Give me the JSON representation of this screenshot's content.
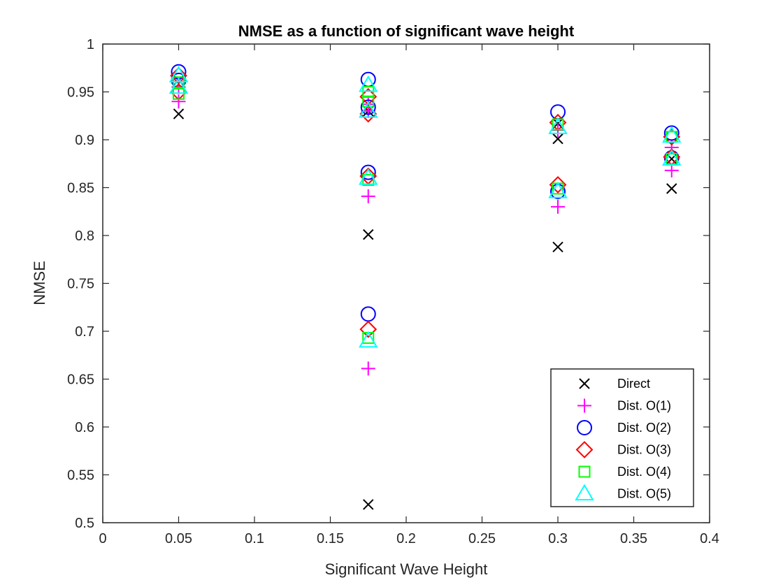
{
  "chart_data": {
    "type": "scatter",
    "title": "NMSE as a function of significant wave height",
    "xlabel": "Significant Wave Height",
    "ylabel": "NMSE",
    "xlim": [
      0,
      0.4
    ],
    "ylim": [
      0.5,
      1
    ],
    "xticks": [
      0,
      0.05,
      0.1,
      0.15,
      0.2,
      0.25,
      0.3,
      0.35,
      0.4
    ],
    "xtick_labels": [
      "0",
      "0.05",
      "0.1",
      "0.15",
      "0.2",
      "0.25",
      "0.3",
      "0.35",
      "0.4"
    ],
    "yticks": [
      0.5,
      0.55,
      0.6,
      0.65,
      0.7,
      0.75,
      0.8,
      0.85,
      0.9,
      0.95,
      1
    ],
    "ytick_labels": [
      "0.5",
      "0.55",
      "0.6",
      "0.65",
      "0.7",
      "0.75",
      "0.8",
      "0.85",
      "0.9",
      "0.95",
      "1"
    ],
    "grid": false,
    "legend_position": "bottom-right",
    "series": [
      {
        "name": "Direct",
        "marker": "x",
        "color": "#000000",
        "points": [
          [
            0.05,
            0.927
          ],
          [
            0.05,
            0.962
          ],
          [
            0.175,
            0.519
          ],
          [
            0.175,
            0.801
          ],
          [
            0.175,
            0.93
          ],
          [
            0.3,
            0.788
          ],
          [
            0.3,
            0.901
          ],
          [
            0.3,
            0.917
          ],
          [
            0.375,
            0.849
          ],
          [
            0.375,
            0.88
          ]
        ]
      },
      {
        "name": "Dist. O(1)",
        "marker": "plus",
        "color": "#ff00ff",
        "points": [
          [
            0.05,
            0.94
          ],
          [
            0.05,
            0.955
          ],
          [
            0.175,
            0.661
          ],
          [
            0.175,
            0.841
          ],
          [
            0.175,
            0.93
          ],
          [
            0.175,
            0.937
          ],
          [
            0.3,
            0.83
          ],
          [
            0.3,
            0.91
          ],
          [
            0.375,
            0.868
          ],
          [
            0.375,
            0.892
          ]
        ]
      },
      {
        "name": "Dist. O(2)",
        "marker": "circle",
        "color": "#0000ff",
        "points": [
          [
            0.05,
            0.971
          ],
          [
            0.05,
            0.962
          ],
          [
            0.175,
            0.718
          ],
          [
            0.175,
            0.866
          ],
          [
            0.175,
            0.934
          ],
          [
            0.175,
            0.963
          ],
          [
            0.3,
            0.846
          ],
          [
            0.3,
            0.929
          ],
          [
            0.375,
            0.881
          ],
          [
            0.375,
            0.907
          ]
        ]
      },
      {
        "name": "Dist. O(3)",
        "marker": "diamond",
        "color": "#ff0000",
        "points": [
          [
            0.05,
            0.967
          ],
          [
            0.05,
            0.95
          ],
          [
            0.175,
            0.702
          ],
          [
            0.175,
            0.862
          ],
          [
            0.175,
            0.927
          ],
          [
            0.175,
            0.945
          ],
          [
            0.3,
            0.853
          ],
          [
            0.3,
            0.918
          ],
          [
            0.375,
            0.882
          ],
          [
            0.375,
            0.903
          ]
        ]
      },
      {
        "name": "Dist. O(4)",
        "marker": "square",
        "color": "#00ff00",
        "points": [
          [
            0.05,
            0.96
          ],
          [
            0.05,
            0.948
          ],
          [
            0.175,
            0.693
          ],
          [
            0.175,
            0.858
          ],
          [
            0.175,
            0.94
          ],
          [
            0.175,
            0.95
          ],
          [
            0.3,
            0.849
          ],
          [
            0.3,
            0.916
          ],
          [
            0.375,
            0.88
          ],
          [
            0.375,
            0.903
          ]
        ]
      },
      {
        "name": "Dist. O(5)",
        "marker": "triangle",
        "color": "#00ffff",
        "points": [
          [
            0.05,
            0.967
          ],
          [
            0.05,
            0.955
          ],
          [
            0.175,
            0.69
          ],
          [
            0.175,
            0.86
          ],
          [
            0.175,
            0.93
          ],
          [
            0.175,
            0.957
          ],
          [
            0.3,
            0.846
          ],
          [
            0.3,
            0.913
          ],
          [
            0.375,
            0.88
          ],
          [
            0.375,
            0.904
          ]
        ]
      }
    ]
  }
}
